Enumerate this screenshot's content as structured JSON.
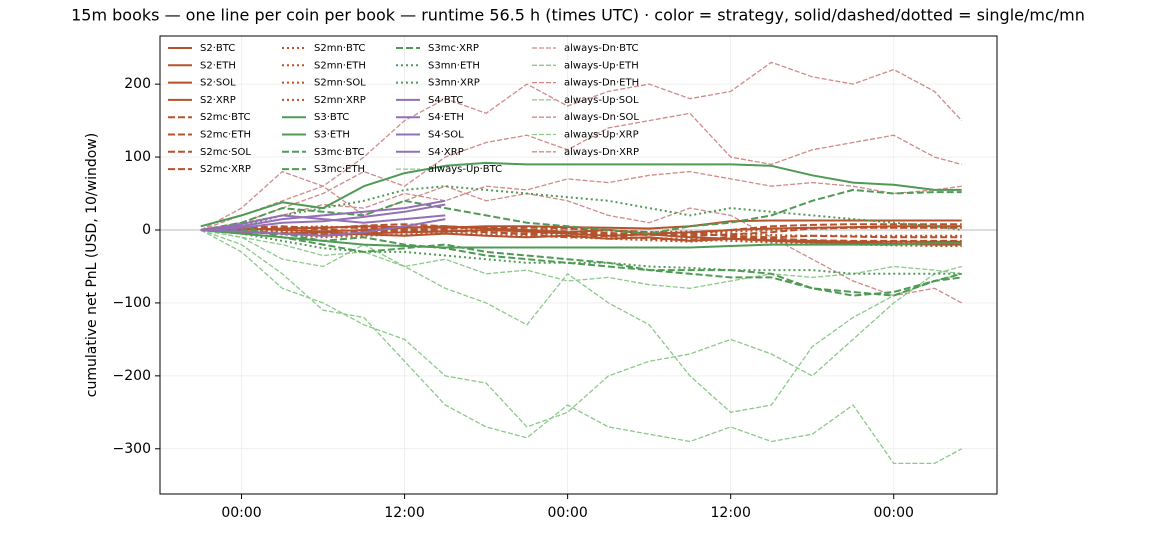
{
  "chart_data": {
    "type": "line",
    "title": "15m books — one line per coin per book — runtime 56.5 h (times UTC) · color = strategy, solid/dashed/dotted = single/mc/mn",
    "y_label": "cumulative net PnL (USD, 10/window)",
    "x": [
      -3,
      0,
      3,
      6,
      9,
      12,
      15,
      18,
      21,
      24,
      27,
      30,
      33,
      36,
      39,
      42,
      45,
      48,
      51,
      53
    ],
    "xlim": [
      -6,
      55.6
    ],
    "xticks": [
      {
        "value": 0,
        "label": "00:00"
      },
      {
        "value": 12,
        "label": "12:00"
      },
      {
        "value": 24,
        "label": "00:00"
      },
      {
        "value": 36,
        "label": "12:00"
      },
      {
        "value": 48,
        "label": "00:00"
      }
    ],
    "ylim": [
      -362,
      266
    ],
    "yticks": [
      {
        "value": -300,
        "label": "−300"
      },
      {
        "value": -200,
        "label": "−200"
      },
      {
        "value": -100,
        "label": "−100"
      },
      0,
      100,
      200
    ],
    "grid": true,
    "zero_line": true,
    "legend": "upper left",
    "series": [
      {
        "name": "S2·BTC",
        "color": "#b5532e",
        "style": "solid",
        "values": [
          0,
          0,
          2,
          3,
          5,
          4,
          3,
          5,
          5,
          4,
          3,
          2,
          5,
          12,
          13,
          13,
          13,
          13,
          13,
          13
        ]
      },
      {
        "name": "S2·ETH",
        "color": "#b5532e",
        "style": "solid",
        "values": [
          0,
          -3,
          -5,
          -8,
          -5,
          -3,
          -2,
          0,
          -2,
          -5,
          -8,
          -6,
          -10,
          -12,
          -15,
          -17,
          -18,
          -19,
          -20,
          -20
        ]
      },
      {
        "name": "S2·SOL",
        "color": "#b5532e",
        "style": "solid",
        "values": [
          0,
          2,
          0,
          -2,
          0,
          3,
          5,
          2,
          0,
          -3,
          0,
          -5,
          -3,
          0,
          2,
          3,
          4,
          5,
          5,
          5
        ]
      },
      {
        "name": "S2·XRP",
        "color": "#b5532e",
        "style": "solid",
        "values": [
          0,
          -2,
          -5,
          -3,
          -6,
          -8,
          -5,
          -8,
          -10,
          -8,
          -12,
          -10,
          -15,
          -12,
          -14,
          -15,
          -16,
          -16,
          -16,
          -16
        ]
      },
      {
        "name": "S2mc·BTC",
        "color": "#b5532e",
        "style": "dashed",
        "values": [
          0,
          3,
          5,
          2,
          6,
          8,
          5,
          3,
          4,
          2,
          0,
          -3,
          -5,
          0,
          5,
          7,
          8,
          8,
          8,
          8
        ]
      },
      {
        "name": "S2mc·ETH",
        "color": "#b5532e",
        "style": "dashed",
        "values": [
          0,
          -2,
          -4,
          -6,
          -3,
          -1,
          0,
          -3,
          -6,
          -10,
          -8,
          -12,
          -14,
          -10,
          -12,
          -14,
          -15,
          -15,
          -15,
          -15
        ]
      },
      {
        "name": "S2mc·SOL",
        "color": "#b5532e",
        "style": "dashed",
        "values": [
          0,
          1,
          3,
          1,
          -2,
          0,
          2,
          4,
          1,
          -2,
          -4,
          -7,
          -5,
          -8,
          -10,
          -8,
          -9,
          -10,
          -10,
          -10
        ]
      },
      {
        "name": "S2mc·XRP",
        "color": "#b5532e",
        "style": "dashed",
        "values": [
          0,
          -1,
          2,
          4,
          3,
          1,
          -1,
          -3,
          -5,
          -3,
          -6,
          -4,
          -8,
          -6,
          -3,
          2,
          3,
          3,
          3,
          3
        ]
      },
      {
        "name": "S2mn·BTC",
        "color": "#b5532e",
        "style": "dotted",
        "values": [
          0,
          2,
          -2,
          -5,
          -3,
          0,
          3,
          1,
          -1,
          -4,
          -6,
          -3,
          -2,
          -5,
          -7,
          -8,
          -8,
          -8,
          -8,
          -8
        ]
      },
      {
        "name": "S2mn·ETH",
        "color": "#b5532e",
        "style": "dotted",
        "values": [
          0,
          -2,
          -6,
          -10,
          -8,
          -6,
          -4,
          -6,
          -8,
          -10,
          -12,
          -14,
          -16,
          -13,
          -15,
          -16,
          -18,
          -18,
          -18,
          -18
        ]
      },
      {
        "name": "S2mn·SOL",
        "color": "#b5532e",
        "style": "dotted",
        "values": [
          0,
          0,
          -3,
          -6,
          -4,
          -2,
          -1,
          -3,
          -5,
          -7,
          -9,
          -11,
          -12,
          -15,
          -17,
          -19,
          -20,
          -21,
          -22,
          -22
        ]
      },
      {
        "name": "S2mn·XRP",
        "color": "#b5532e",
        "style": "dotted",
        "values": [
          0,
          1,
          3,
          5,
          2,
          0,
          -2,
          -1,
          0,
          2,
          -1,
          -3,
          -5,
          -2,
          0,
          2,
          3,
          3,
          3,
          3
        ]
      },
      {
        "name": "S3·BTC",
        "color": "#4f9a55",
        "style": "solid",
        "values": [
          5,
          20,
          38,
          30,
          60,
          78,
          88,
          92,
          90,
          90,
          90,
          90,
          90,
          90,
          88,
          75,
          65,
          62,
          55,
          55
        ]
      },
      {
        "name": "S3·ETH",
        "color": "#4f9a55",
        "style": "solid",
        "values": [
          0,
          -5,
          -10,
          -15,
          -20,
          -22,
          -24,
          -24,
          -24,
          -24,
          -24,
          -24,
          -24,
          -22,
          -20,
          -20,
          -20,
          -20,
          -18,
          -18
        ]
      },
      {
        "name": "S3mc·BTC",
        "color": "#4f9a55",
        "style": "dashed",
        "values": [
          0,
          5,
          -10,
          -20,
          -30,
          -25,
          -20,
          -30,
          -35,
          -40,
          -45,
          -55,
          -60,
          -65,
          -65,
          -80,
          -85,
          -90,
          -70,
          -60
        ]
      },
      {
        "name": "S3mc·ETH",
        "color": "#4f9a55",
        "style": "dashed",
        "values": [
          0,
          10,
          30,
          25,
          20,
          40,
          30,
          20,
          10,
          5,
          0,
          -5,
          5,
          10,
          20,
          40,
          55,
          50,
          52,
          52
        ]
      },
      {
        "name": "S3mc·XRP",
        "color": "#4f9a55",
        "style": "dashed",
        "values": [
          0,
          0,
          -5,
          -15,
          -10,
          -20,
          -25,
          -35,
          -40,
          -45,
          -50,
          -55,
          -55,
          -55,
          -60,
          -80,
          -90,
          -85,
          -70,
          -65
        ]
      },
      {
        "name": "S3mn·ETH",
        "color": "#4f9a55",
        "style": "dotted",
        "values": [
          0,
          5,
          20,
          30,
          40,
          55,
          60,
          55,
          50,
          45,
          40,
          30,
          20,
          30,
          25,
          20,
          15,
          10,
          5,
          0
        ]
      },
      {
        "name": "S3mn·XRP",
        "color": "#4f9a55",
        "style": "dotted",
        "values": [
          0,
          -5,
          -15,
          -25,
          -30,
          -30,
          -35,
          -40,
          -45,
          -45,
          -45,
          -50,
          -52,
          -55,
          -55,
          -55,
          -60,
          -60,
          -60,
          -60
        ]
      },
      {
        "name": "S4·BTC",
        "color": "#9370b5",
        "style": "solid",
        "values": [
          0,
          5,
          15,
          20,
          25,
          30,
          40,
          null,
          null,
          null,
          null,
          null,
          null,
          null,
          null,
          null,
          null,
          null,
          null,
          null
        ]
      },
      {
        "name": "S4·ETH",
        "color": "#9370b5",
        "style": "solid",
        "values": [
          0,
          3,
          10,
          12,
          18,
          25,
          35,
          null,
          null,
          null,
          null,
          null,
          null,
          null,
          null,
          null,
          null,
          null,
          null,
          null
        ]
      },
      {
        "name": "S4·SOL",
        "color": "#9370b5",
        "style": "solid",
        "values": [
          0,
          8,
          20,
          15,
          10,
          15,
          20,
          null,
          null,
          null,
          null,
          null,
          null,
          null,
          null,
          null,
          null,
          null,
          null,
          null
        ]
      },
      {
        "name": "S4·XRP",
        "color": "#9370b5",
        "style": "solid",
        "values": [
          0,
          -2,
          -5,
          -8,
          -3,
          5,
          15,
          null,
          null,
          null,
          null,
          null,
          null,
          null,
          null,
          null,
          null,
          null,
          null,
          null
        ]
      },
      {
        "name": "always-Up·BTC",
        "color": "#8cc98a",
        "style": "thin",
        "values": [
          0,
          -10,
          -20,
          -35,
          -30,
          -50,
          -40,
          -60,
          -55,
          -70,
          -65,
          -75,
          -80,
          -70,
          -60,
          -65,
          -60,
          -50,
          -55,
          -60
        ]
      },
      {
        "name": "always-Dn·BTC",
        "color": "#d08a8a",
        "style": "thin",
        "values": [
          0,
          10,
          20,
          35,
          30,
          50,
          40,
          60,
          55,
          70,
          65,
          75,
          80,
          70,
          60,
          65,
          60,
          50,
          55,
          60
        ]
      },
      {
        "name": "always-Up·ETH",
        "color": "#8cc98a",
        "style": "thin",
        "values": [
          0,
          -20,
          -60,
          -110,
          -120,
          -180,
          -240,
          -270,
          -285,
          -240,
          -270,
          -280,
          -290,
          -270,
          -290,
          -280,
          -240,
          -320,
          -320,
          -300
        ]
      },
      {
        "name": "always-Dn·ETH",
        "color": "#d08a8a",
        "style": "thin",
        "values": [
          0,
          20,
          40,
          60,
          100,
          150,
          180,
          160,
          200,
          170,
          190,
          200,
          180,
          190,
          230,
          210,
          200,
          220,
          190,
          150
        ]
      },
      {
        "name": "always-Up·SOL",
        "color": "#8cc98a",
        "style": "thin",
        "values": [
          0,
          -30,
          -80,
          -100,
          -130,
          -150,
          -200,
          -210,
          -270,
          -250,
          -200,
          -180,
          -170,
          -150,
          -170,
          -200,
          -150,
          -100,
          -60,
          -50
        ]
      },
      {
        "name": "always-Dn·SOL",
        "color": "#d08a8a",
        "style": "thin",
        "values": [
          0,
          30,
          80,
          60,
          20,
          40,
          60,
          40,
          50,
          40,
          20,
          10,
          30,
          20,
          -10,
          -40,
          -70,
          -90,
          -80,
          -100
        ]
      },
      {
        "name": "always-Up·XRP",
        "color": "#8cc98a",
        "style": "thin",
        "values": [
          0,
          -10,
          -40,
          -50,
          -20,
          -50,
          -80,
          -100,
          -130,
          -60,
          -100,
          -130,
          -200,
          -250,
          -240,
          -160,
          -120,
          -90,
          -70,
          -60
        ]
      },
      {
        "name": "always-Dn·XRP",
        "color": "#d08a8a",
        "style": "thin",
        "values": [
          0,
          10,
          30,
          50,
          80,
          60,
          100,
          120,
          130,
          110,
          140,
          150,
          160,
          100,
          90,
          110,
          120,
          130,
          100,
          90
        ]
      }
    ]
  }
}
